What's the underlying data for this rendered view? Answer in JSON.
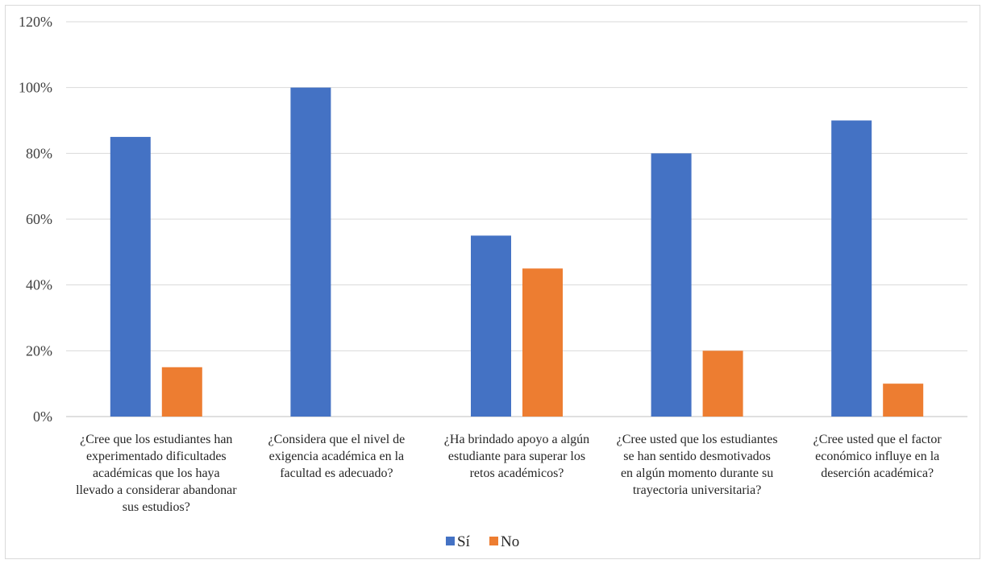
{
  "chart_data": {
    "type": "bar",
    "categories": [
      [
        "¿Cree que los estudiantes han",
        "experimentado dificultades",
        "académicas que los haya",
        "llevado a considerar abandonar",
        "sus estudios?"
      ],
      [
        "¿Considera que el nivel de",
        "exigencia académica en la",
        "facultad es adecuado?"
      ],
      [
        "¿Ha brindado apoyo a algún",
        "estudiante para superar los",
        "retos académicos?"
      ],
      [
        "¿Cree usted que los estudiantes",
        "se han sentido desmotivados",
        "en algún momento durante su",
        "trayectoria universitaria?"
      ],
      [
        "¿Cree usted que el factor",
        "económico influye en la",
        "deserción académica?"
      ]
    ],
    "series": [
      {
        "name": "Sí",
        "color": "#4472C4",
        "values": [
          0.85,
          1.0,
          0.55,
          0.8,
          0.9
        ]
      },
      {
        "name": "No",
        "color": "#ED7D31",
        "values": [
          0.15,
          0.0,
          0.45,
          0.2,
          0.1
        ]
      }
    ],
    "ylim": [
      0,
      1.2
    ],
    "yticks": [
      "0%",
      "20%",
      "40%",
      "60%",
      "80%",
      "100%",
      "120%"
    ],
    "grid": true,
    "legend": "bottom"
  }
}
